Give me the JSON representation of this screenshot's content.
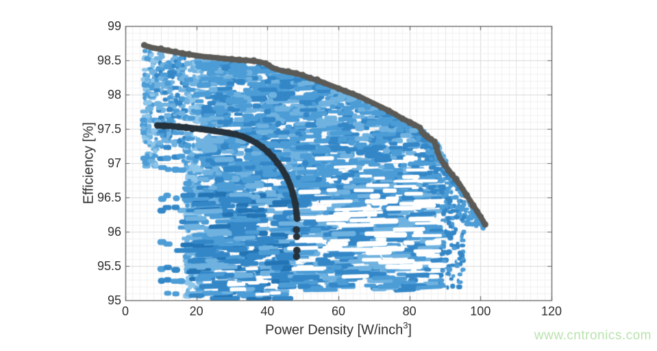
{
  "page": {
    "background": "#ffffff",
    "watermark_text": "www.cntronics.com",
    "watermark_color": "#b9e2ae"
  },
  "chart_data": {
    "type": "scatter",
    "title": "",
    "xlabel_prefix": "Power Density [W/inch",
    "xlabel_sup": "3",
    "xlabel_suffix": "]",
    "ylabel": "Efficiency [%]",
    "xlim": [
      0,
      120
    ],
    "ylim": [
      95,
      99
    ],
    "xticks": [
      0,
      20,
      40,
      60,
      80,
      100,
      120
    ],
    "yticks": [
      95,
      95.5,
      96,
      96.5,
      97,
      97.5,
      98,
      98.5,
      99
    ],
    "grid": {
      "minor_x_step": 2,
      "minor_y_step": 0.1,
      "minor_color": "#f1f1f1",
      "mid_color": "#e4e4e4",
      "major_color": "#d9d9d9"
    },
    "axis": {
      "line_color": "#5f5f5f",
      "tick_length": 6,
      "tick_label_color": "#2e2e2e",
      "label_color": "#2e2e2e"
    },
    "series": [
      {
        "name": "design-space-cloud",
        "kind": "dense-scatter-cloud",
        "marker": "capsule",
        "palette": [
          "#8ec6ea",
          "#6fb2e0",
          "#4c9cd6",
          "#3487c7",
          "#2374b4"
        ],
        "envelope_offset": 0.06,
        "bands": [
          {
            "name": "left-strip",
            "x": [
              5.0,
              8.8
            ],
            "y": [
              96.95,
              98.66
            ],
            "count": 130,
            "w": [
              5,
              13
            ],
            "h": [
              5,
              8
            ],
            "shades": [
              0,
              1,
              2
            ]
          },
          {
            "name": "left-column",
            "x": [
              8.9,
              17.0
            ],
            "y": [
              97.22,
              98.6
            ],
            "count": 190,
            "w": [
              5,
              12
            ],
            "h": [
              5,
              8
            ],
            "shades": [
              1,
              2,
              3
            ]
          },
          {
            "name": "light-column",
            "x": [
              17.0,
              21.6
            ],
            "y": [
              95.05,
              98.5
            ],
            "count": 300,
            "w": [
              5,
              14
            ],
            "h": [
              5,
              9
            ],
            "shades": [
              0,
              1,
              2
            ]
          },
          {
            "name": "main-top",
            "x": [
              21.6,
              48.4
            ],
            "y": [
              96.45,
              98.52
            ],
            "count": 660,
            "w": [
              8,
              30
            ],
            "h": [
              5,
              9
            ],
            "shades": [
              1,
              2,
              2,
              3
            ]
          },
          {
            "name": "main-bottom",
            "x": [
              17.5,
              48.4
            ],
            "y": [
              95.02,
              96.55
            ],
            "count": 340,
            "w": [
              10,
              45
            ],
            "h": [
              5,
              8
            ],
            "shades": [
              1,
              2,
              3,
              3,
              4
            ]
          },
          {
            "name": "right-top",
            "x": [
              48.4,
              88.5
            ],
            "y": [
              96.55,
              98.35
            ],
            "count": 720,
            "w": [
              8,
              28
            ],
            "h": [
              5,
              9
            ],
            "shades": [
              1,
              2,
              2,
              3
            ]
          },
          {
            "name": "right-bottom",
            "x": [
              48.4,
              88.5
            ],
            "y": [
              95.15,
              96.7
            ],
            "count": 440,
            "w": [
              10,
              40
            ],
            "h": [
              5,
              8
            ],
            "shades": [
              1,
              2,
              3
            ]
          },
          {
            "name": "steep-sliver",
            "x": [
              86.0,
              95.2
            ],
            "y": [
              96.55,
              97.35
            ],
            "count": 95,
            "w": [
              5,
              12
            ],
            "h": [
              4,
              7
            ],
            "shades": [
              2,
              3
            ]
          },
          {
            "name": "front-sliver",
            "x": [
              95.0,
              101.0
            ],
            "y": [
              96.08,
              96.55
            ],
            "count": 70,
            "w": [
              4,
              9
            ],
            "h": [
              4,
              6
            ],
            "shades": [
              2
            ]
          },
          {
            "name": "right-cols",
            "x": [
              88.6,
              95.2
            ],
            "y": [
              95.18,
              96.6
            ],
            "count": 130,
            "w": [
              4,
              9
            ],
            "h": [
              5,
              8
            ],
            "shades": [
              2,
              3
            ],
            "columns": [
              89.3,
              90.7,
              92.1,
              93.6,
              94.8
            ]
          }
        ],
        "blob_rows": [
          {
            "y": 97.08,
            "xs": [
              10.3,
              11.9,
              14.2,
              15.8
            ]
          },
          {
            "y": 96.92,
            "xs": [
              10.3,
              11.9,
              14.2,
              15.8
            ]
          },
          {
            "y": 96.5,
            "xs": [
              10.3,
              11.9,
              14.2
            ]
          },
          {
            "y": 96.33,
            "xs": [
              10.3,
              11.9,
              14.2
            ]
          },
          {
            "y": 95.82,
            "xs": [
              10.3,
              11.9
            ]
          },
          {
            "y": 95.45,
            "xs": [
              10.3,
              11.9,
              14.2
            ]
          },
          {
            "y": 95.3,
            "xs": [
              10.3,
              11.9,
              14.2,
              15.8
            ]
          },
          {
            "y": 95.08,
            "xs": [
              11.9,
              14.2
            ]
          }
        ],
        "holes": [
          {
            "x": [
              49,
              88
            ],
            "y": [
              95.3,
              96.6
            ],
            "count": 60,
            "w": [
              14,
              55
            ],
            "h": [
              4,
              8
            ]
          },
          {
            "x": [
              52,
              86
            ],
            "y": [
              96.6,
              97.1
            ],
            "count": 18,
            "w": [
              10,
              35
            ],
            "h": [
              3,
              6
            ]
          },
          {
            "x": [
              17.5,
              31
            ],
            "y": [
              97.4,
              97.52
            ],
            "count": 14,
            "w": [
              8,
              26
            ],
            "h": [
              4,
              6
            ]
          },
          {
            "x": [
              30,
              44
            ],
            "y": [
              95.05,
              95.5
            ],
            "count": 12,
            "w": [
              10,
              30
            ],
            "h": [
              4,
              6
            ]
          }
        ]
      },
      {
        "name": "overall-pareto-front",
        "kind": "thick-dotted-line",
        "color": "#5b5a56",
        "line_width": 8,
        "dot_radius": [
          3.8,
          5.2
        ],
        "points": [
          [
            5.2,
            98.72
          ],
          [
            6.5,
            98.7
          ],
          [
            8,
            98.68
          ],
          [
            10,
            98.66
          ],
          [
            12,
            98.64
          ],
          [
            14,
            98.62
          ],
          [
            16,
            98.6
          ],
          [
            18,
            98.585
          ],
          [
            20,
            98.57
          ],
          [
            22,
            98.555
          ],
          [
            24,
            98.545
          ],
          [
            26,
            98.535
          ],
          [
            28,
            98.525
          ],
          [
            30,
            98.515
          ],
          [
            32,
            98.505
          ],
          [
            34,
            98.5
          ],
          [
            36,
            98.49
          ],
          [
            38,
            98.475
          ],
          [
            39.5,
            98.455
          ],
          [
            40.5,
            98.42
          ],
          [
            41.5,
            98.39
          ],
          [
            42.5,
            98.37
          ],
          [
            44,
            98.35
          ],
          [
            46,
            98.33
          ],
          [
            48,
            98.31
          ],
          [
            50,
            98.28
          ],
          [
            52,
            98.24
          ],
          [
            54,
            98.21
          ],
          [
            56,
            98.17
          ],
          [
            58,
            98.13
          ],
          [
            60,
            98.09
          ],
          [
            62,
            98.05
          ],
          [
            64,
            98.01
          ],
          [
            66,
            97.97
          ],
          [
            68,
            97.92
          ],
          [
            70,
            97.87
          ],
          [
            72,
            97.82
          ],
          [
            74,
            97.77
          ],
          [
            76,
            97.71
          ],
          [
            78,
            97.65
          ],
          [
            80,
            97.6
          ],
          [
            81.5,
            97.56
          ],
          [
            83,
            97.52
          ],
          [
            83.6,
            97.45
          ],
          [
            84.3,
            97.42
          ],
          [
            85,
            97.39
          ],
          [
            86,
            97.35
          ],
          [
            87,
            97.31
          ],
          [
            87.5,
            97.24
          ],
          [
            88,
            97.16
          ],
          [
            88.6,
            97.08
          ],
          [
            89.3,
            97.02
          ],
          [
            90,
            96.97
          ],
          [
            91,
            96.9
          ],
          [
            92,
            96.83
          ],
          [
            93,
            96.77
          ],
          [
            94,
            96.7
          ],
          [
            95,
            96.62
          ],
          [
            96,
            96.54
          ],
          [
            97,
            96.46
          ],
          [
            98,
            96.38
          ],
          [
            99,
            96.3
          ],
          [
            100,
            96.22
          ],
          [
            100.8,
            96.15
          ],
          [
            101.3,
            96.1
          ]
        ]
      },
      {
        "name": "subset-pareto-front",
        "kind": "thick-dotted-line",
        "color": "#25313b",
        "line_width": 9,
        "dot_radius": [
          4.0,
          5.5
        ],
        "points": [
          [
            9.0,
            97.55
          ],
          [
            11,
            97.545
          ],
          [
            13,
            97.54
          ],
          [
            15,
            97.53
          ],
          [
            17,
            97.52
          ],
          [
            19,
            97.51
          ],
          [
            21,
            97.5
          ],
          [
            23,
            97.485
          ],
          [
            25,
            97.47
          ],
          [
            27,
            97.455
          ],
          [
            29,
            97.44
          ],
          [
            31,
            97.42
          ],
          [
            33,
            97.39
          ],
          [
            35,
            97.345
          ],
          [
            37,
            97.29
          ],
          [
            38.5,
            97.235
          ],
          [
            40,
            97.17
          ],
          [
            41.5,
            97.09
          ],
          [
            43,
            97.0
          ],
          [
            44.3,
            96.9
          ],
          [
            45.5,
            96.79
          ],
          [
            46.5,
            96.67
          ],
          [
            47.3,
            96.54
          ],
          [
            47.9,
            96.4
          ],
          [
            48.2,
            96.27
          ],
          [
            48.3,
            96.19
          ]
        ],
        "extra_dots": [
          [
            48.15,
            96.03
          ],
          [
            48.25,
            95.93
          ],
          [
            48.3,
            95.73
          ],
          [
            48.2,
            95.64
          ]
        ]
      }
    ]
  }
}
